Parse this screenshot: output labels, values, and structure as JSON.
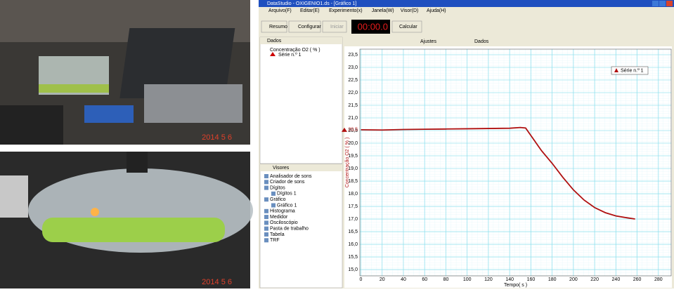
{
  "photos": {
    "top_date_stamp": "2014  5  6",
    "bottom_date_stamp": "2014  5  6"
  },
  "window": {
    "title": "DataStudio - OXIGENIO1.ds - [Gráfico 1]",
    "menu": [
      "Arquivo(F)",
      "Editar(E)",
      "Experimento(x)",
      "Janela(W)",
      "Visor(D)",
      "Ajuda(H)"
    ],
    "toolbar": {
      "summary": "Resumo",
      "setup": "Configurar",
      "start": "Iniciar",
      "timer": "00:00.0",
      "calculate": "Calcular"
    },
    "graph_toolbar": {
      "adjust": "Ajustes",
      "data": "Dados"
    },
    "data_panel": {
      "header": "Dados",
      "sensor": "Concentração O2 ( % )",
      "series": "Série n.º 1"
    },
    "displays_panel": {
      "header": "Visores",
      "items": [
        "Analisador de sons",
        "Criador de sons",
        "Dígitos",
        "Dígitos 1",
        "Gráfico",
        "Gráfico 1",
        "Histograma",
        "Medidor",
        "Osciloscópio",
        "Pasta de trabalho",
        "Tabela",
        "TRF"
      ]
    }
  },
  "chart_data": {
    "type": "line",
    "x_label": "Tempo( s )",
    "y_label": "Concentração O2 ( % )",
    "current_value_label": "20,5",
    "legend": "upper right",
    "grid": true,
    "xlim": [
      -1,
      292
    ],
    "ylim": [
      14.75,
      23.72
    ],
    "xticks": [
      0,
      20,
      40,
      60,
      80,
      100,
      120,
      140,
      160,
      180,
      200,
      220,
      240,
      260,
      280
    ],
    "yticks": [
      {
        "value": 15.0,
        "label": "15,0"
      },
      {
        "value": 15.5,
        "label": "15,5"
      },
      {
        "value": 16.0,
        "label": "16,0"
      },
      {
        "value": 16.5,
        "label": "16,5"
      },
      {
        "value": 17.0,
        "label": "17,0"
      },
      {
        "value": 17.5,
        "label": "17,5"
      },
      {
        "value": 18.0,
        "label": "18,0"
      },
      {
        "value": 18.5,
        "label": "18,5"
      },
      {
        "value": 19.0,
        "label": "19,0"
      },
      {
        "value": 19.5,
        "label": "19,5"
      },
      {
        "value": 20.0,
        "label": "20,0"
      },
      {
        "value": 20.5,
        "label": "20,5"
      },
      {
        "value": 21.0,
        "label": "21,0"
      },
      {
        "value": 21.5,
        "label": "21,5"
      },
      {
        "value": 22.0,
        "label": "22,0"
      },
      {
        "value": 22.5,
        "label": "22,5"
      },
      {
        "value": 23.0,
        "label": "23,0"
      },
      {
        "value": 23.5,
        "label": "23,5"
      }
    ],
    "x": [
      0,
      20,
      40,
      60,
      80,
      100,
      120,
      140,
      150,
      155,
      160,
      170,
      180,
      190,
      200,
      210,
      220,
      230,
      240,
      250,
      258
    ],
    "series": [
      {
        "name": "Série n.º 1",
        "color": "#b01010",
        "values": [
          20.53,
          20.52,
          20.54,
          20.55,
          20.56,
          20.57,
          20.58,
          20.59,
          20.62,
          20.6,
          20.3,
          19.7,
          19.2,
          18.65,
          18.15,
          17.75,
          17.45,
          17.25,
          17.12,
          17.05,
          17.0
        ]
      }
    ]
  }
}
